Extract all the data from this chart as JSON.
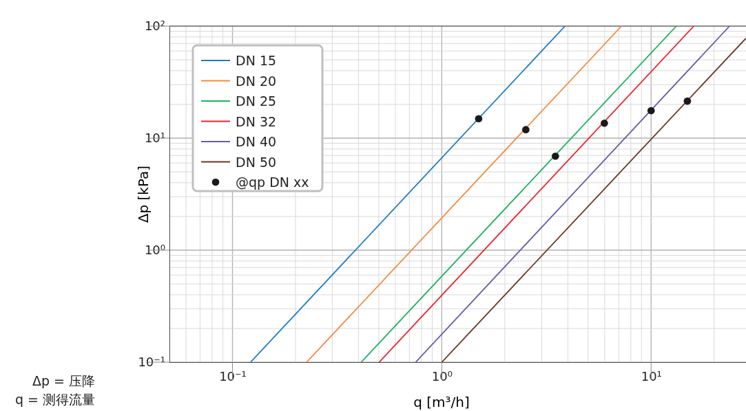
{
  "chart_data": {
    "type": "line",
    "xlabel": "q [m³/h]",
    "ylabel": "Δp [kPa]",
    "log": "xy",
    "grid": true,
    "legend": "top left",
    "marker": "none",
    "line_style": "solid",
    "xlim": [
      0.05,
      28.4
    ],
    "ylim": [
      0.1,
      100
    ],
    "xticks": [
      {
        "value": 0.05,
        "label": null
      },
      {
        "value": 0.06,
        "label": null
      },
      {
        "value": 0.07,
        "label": null
      },
      {
        "value": 0.08,
        "label": null
      },
      {
        "value": 0.09,
        "label": null
      },
      {
        "value": 0.1,
        "label": "10⁻¹"
      },
      {
        "value": 0.2,
        "label": null
      },
      {
        "value": 0.3,
        "label": null
      },
      {
        "value": 0.4,
        "label": null
      },
      {
        "value": 0.5,
        "label": null
      },
      {
        "value": 0.6,
        "label": null
      },
      {
        "value": 0.7,
        "label": null
      },
      {
        "value": 0.8,
        "label": null
      },
      {
        "value": 0.9,
        "label": null
      },
      {
        "value": 1,
        "label": "10⁰"
      },
      {
        "value": 2,
        "label": null
      },
      {
        "value": 3,
        "label": null
      },
      {
        "value": 4,
        "label": null
      },
      {
        "value": 5,
        "label": null
      },
      {
        "value": 6,
        "label": null
      },
      {
        "value": 7,
        "label": null
      },
      {
        "value": 8,
        "label": null
      },
      {
        "value": 9,
        "label": null
      },
      {
        "value": 10,
        "label": "10¹"
      },
      {
        "value": 20,
        "label": null
      }
    ],
    "yticks": [
      {
        "value": 0.1,
        "label": "10⁻¹"
      },
      {
        "value": 0.2,
        "label": null
      },
      {
        "value": 0.3,
        "label": null
      },
      {
        "value": 0.4,
        "label": null
      },
      {
        "value": 0.5,
        "label": null
      },
      {
        "value": 0.6,
        "label": null
      },
      {
        "value": 0.7,
        "label": null
      },
      {
        "value": 0.8,
        "label": null
      },
      {
        "value": 0.9,
        "label": null
      },
      {
        "value": 1,
        "label": "10⁰"
      },
      {
        "value": 2,
        "label": null
      },
      {
        "value": 3,
        "label": null
      },
      {
        "value": 4,
        "label": null
      },
      {
        "value": 5,
        "label": null
      },
      {
        "value": 6,
        "label": null
      },
      {
        "value": 7,
        "label": null
      },
      {
        "value": 8,
        "label": null
      },
      {
        "value": 9,
        "label": null
      },
      {
        "value": 10,
        "label": "10¹"
      },
      {
        "value": 20,
        "label": null
      },
      {
        "value": 30,
        "label": null
      },
      {
        "value": 40,
        "label": null
      },
      {
        "value": 50,
        "label": null
      },
      {
        "value": 60,
        "label": null
      },
      {
        "value": 70,
        "label": null
      },
      {
        "value": 80,
        "label": null
      },
      {
        "value": 90,
        "label": null
      },
      {
        "value": 100,
        "label": "10²"
      }
    ],
    "series": [
      {
        "name": "DN 15",
        "color": "#1f7bc4",
        "x": [
          0.122,
          3.88
        ],
        "values": [
          0.1,
          100
        ]
      },
      {
        "name": "DN 20",
        "color": "#f5893f",
        "x": [
          0.226,
          7.22
        ],
        "values": [
          0.1,
          100
        ]
      },
      {
        "name": "DN 25",
        "color": "#1faf62",
        "x": [
          0.412,
          13.2
        ],
        "values": [
          0.1,
          100
        ]
      },
      {
        "name": "DN 32",
        "color": "#e8242b",
        "x": [
          0.502,
          16.0
        ],
        "values": [
          0.1,
          100
        ]
      },
      {
        "name": "DN 40",
        "color": "#6a5aa8",
        "x": [
          0.75,
          23.7
        ],
        "values": [
          0.1,
          100
        ]
      },
      {
        "name": "DN 50",
        "color": "#6b3522",
        "x": [
          1.0,
          28.4
        ],
        "values": [
          0.1,
          78
        ]
      },
      {
        "name": "@qp DN xx",
        "type": "scatter",
        "marker": "circle",
        "color": "#1a1a1a",
        "x": [
          1.5,
          2.52,
          3.49,
          5.98,
          10,
          14.9
        ],
        "values": [
          14.9,
          11.9,
          6.9,
          13.6,
          17.6,
          21.4
        ]
      }
    ],
    "annotations": [
      "Δp = 压降",
      "q = 测得流量"
    ]
  }
}
